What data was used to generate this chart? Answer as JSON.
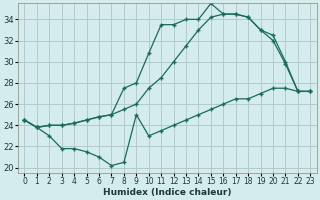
{
  "title": "",
  "xlabel": "Humidex (Indice chaleur)",
  "ylabel": "",
  "bg_color": "#d4ecec",
  "grid_color": "#b0cccc",
  "line_color": "#1a6b5a",
  "xlim": [
    -0.5,
    23.5
  ],
  "ylim": [
    19.5,
    35.5
  ],
  "xticks": [
    0,
    1,
    2,
    3,
    4,
    5,
    6,
    7,
    8,
    9,
    10,
    11,
    12,
    13,
    14,
    15,
    16,
    17,
    18,
    19,
    20,
    21,
    22,
    23
  ],
  "yticks": [
    20,
    22,
    24,
    26,
    28,
    30,
    32,
    34
  ],
  "series": [
    {
      "x": [
        0,
        1,
        2,
        3,
        4,
        5,
        6,
        7,
        8,
        9,
        10,
        11,
        12,
        13,
        14,
        15,
        16,
        17,
        18,
        19,
        20,
        21,
        22,
        23
      ],
      "y": [
        24.5,
        23.8,
        24.0,
        24.0,
        24.2,
        24.5,
        24.8,
        25.0,
        27.5,
        28.0,
        30.8,
        33.5,
        33.5,
        34.0,
        34.0,
        35.5,
        34.5,
        34.5,
        34.2,
        33.0,
        32.0,
        29.8,
        27.2,
        27.2
      ]
    },
    {
      "x": [
        0,
        1,
        2,
        3,
        4,
        5,
        6,
        7,
        8,
        9,
        10,
        11,
        12,
        13,
        14,
        15,
        16,
        17,
        18,
        19,
        20,
        21,
        22,
        23
      ],
      "y": [
        24.5,
        23.8,
        24.0,
        24.0,
        24.2,
        24.5,
        24.8,
        25.0,
        25.5,
        26.0,
        27.5,
        28.5,
        30.0,
        31.5,
        33.0,
        34.2,
        34.5,
        34.5,
        34.2,
        33.0,
        32.5,
        30.0,
        27.2,
        27.2
      ]
    },
    {
      "x": [
        0,
        1,
        2,
        3,
        4,
        5,
        6,
        7,
        8,
        9,
        10,
        11,
        12,
        13,
        14,
        15,
        16,
        17,
        18,
        19,
        20,
        21,
        22,
        23
      ],
      "y": [
        24.5,
        23.8,
        23.0,
        21.8,
        21.8,
        21.5,
        21.0,
        20.2,
        20.5,
        25.0,
        23.0,
        23.5,
        24.0,
        24.5,
        25.0,
        25.5,
        26.0,
        26.5,
        26.5,
        27.0,
        27.5,
        27.5,
        27.2,
        27.2
      ]
    }
  ]
}
